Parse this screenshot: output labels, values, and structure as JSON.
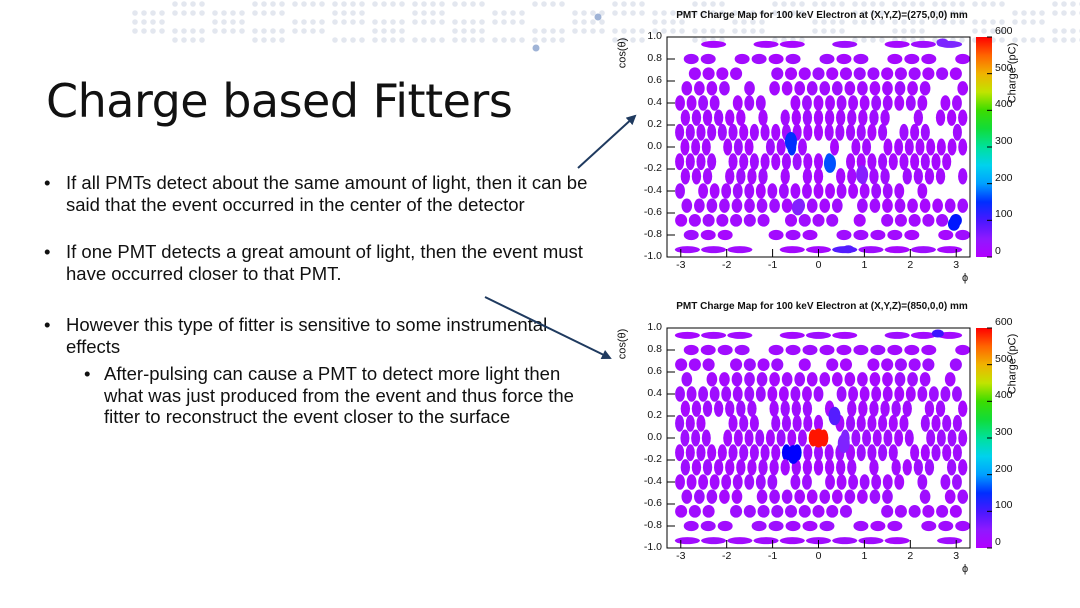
{
  "slide": {
    "title": "Charge based Fitters",
    "bullets": [
      "If all PMTs detect about the same amount of light, then it can be said that the event occurred in the center of the detector",
      "If one PMT detects a great amount of light, then the event must have occurred closer to that PMT.",
      "However this type of fitter is sensitive to some instrumental effects"
    ],
    "sub_bullets": [
      "After-pulsing can cause a PMT to detect more light then what was just produced from the event and thus force the fitter to reconstruct the event closer to the surface"
    ]
  },
  "chart_data": [
    {
      "type": "heatmap",
      "title": "PMT Charge Map for 100 keV Electron at (X,Y,Z)=(275,0,0) mm",
      "xlabel": "ϕ",
      "ylabel": "cos(θ)",
      "colorbar_label": "Charge (pC)",
      "x_ticks": [
        "-3",
        "-2",
        "-1",
        "0",
        "1",
        "2",
        "3"
      ],
      "y_ticks": [
        "1.0",
        "0.8",
        "0.6",
        "0.4",
        "0.2",
        "0.0",
        "-0.2",
        "-0.4",
        "-0.6",
        "-0.8",
        "-1.0"
      ],
      "colorbar_ticks": [
        "0",
        "100",
        "200",
        "300",
        "400",
        "500",
        "600"
      ],
      "xlim": [
        -3.3,
        3.3
      ],
      "ylim": [
        -1.0,
        1.0
      ],
      "zlim": [
        0,
        600
      ],
      "baseline_charge": 20,
      "hot_pmts": [
        {
          "phi": -0.6,
          "cos": 0.05,
          "charge": 150
        },
        {
          "phi": 0.25,
          "cos": -0.15,
          "charge": 165
        },
        {
          "phi": 2.95,
          "cos": -0.7,
          "charge": 140
        },
        {
          "phi": 0.65,
          "cos": -0.93,
          "charge": 95
        },
        {
          "phi": -0.45,
          "cos": -0.55,
          "charge": 65
        },
        {
          "phi": 2.7,
          "cos": 0.95,
          "charge": 75
        },
        {
          "phi": 0.95,
          "cos": -0.25,
          "charge": 60
        }
      ]
    },
    {
      "type": "heatmap",
      "title": "PMT Charge Map for 100 keV Electron at (X,Y,Z)=(850,0,0) mm",
      "xlabel": "ϕ",
      "ylabel": "cos(θ)",
      "colorbar_label": "Charge (pC)",
      "x_ticks": [
        "-3",
        "-2",
        "-1",
        "0",
        "1",
        "2",
        "3"
      ],
      "y_ticks": [
        "1.0",
        "0.8",
        "0.6",
        "0.4",
        "0.2",
        "0.0",
        "-0.2",
        "-0.4",
        "-0.6",
        "-0.8",
        "-1.0"
      ],
      "colorbar_ticks": [
        "0",
        "100",
        "200",
        "300",
        "400",
        "500",
        "600"
      ],
      "xlim": [
        -3.3,
        3.3
      ],
      "ylim": [
        -1.0,
        1.0
      ],
      "zlim": [
        0,
        600
      ],
      "baseline_charge": 22,
      "hot_pmts": [
        {
          "phi": 0.0,
          "cos": 0.0,
          "charge": 590
        },
        {
          "phi": -0.55,
          "cos": -0.15,
          "charge": 130
        },
        {
          "phi": 0.35,
          "cos": 0.2,
          "charge": 95
        },
        {
          "phi": 2.6,
          "cos": 0.95,
          "charge": 105
        },
        {
          "phi": 0.55,
          "cos": -0.05,
          "charge": 70
        }
      ]
    }
  ]
}
